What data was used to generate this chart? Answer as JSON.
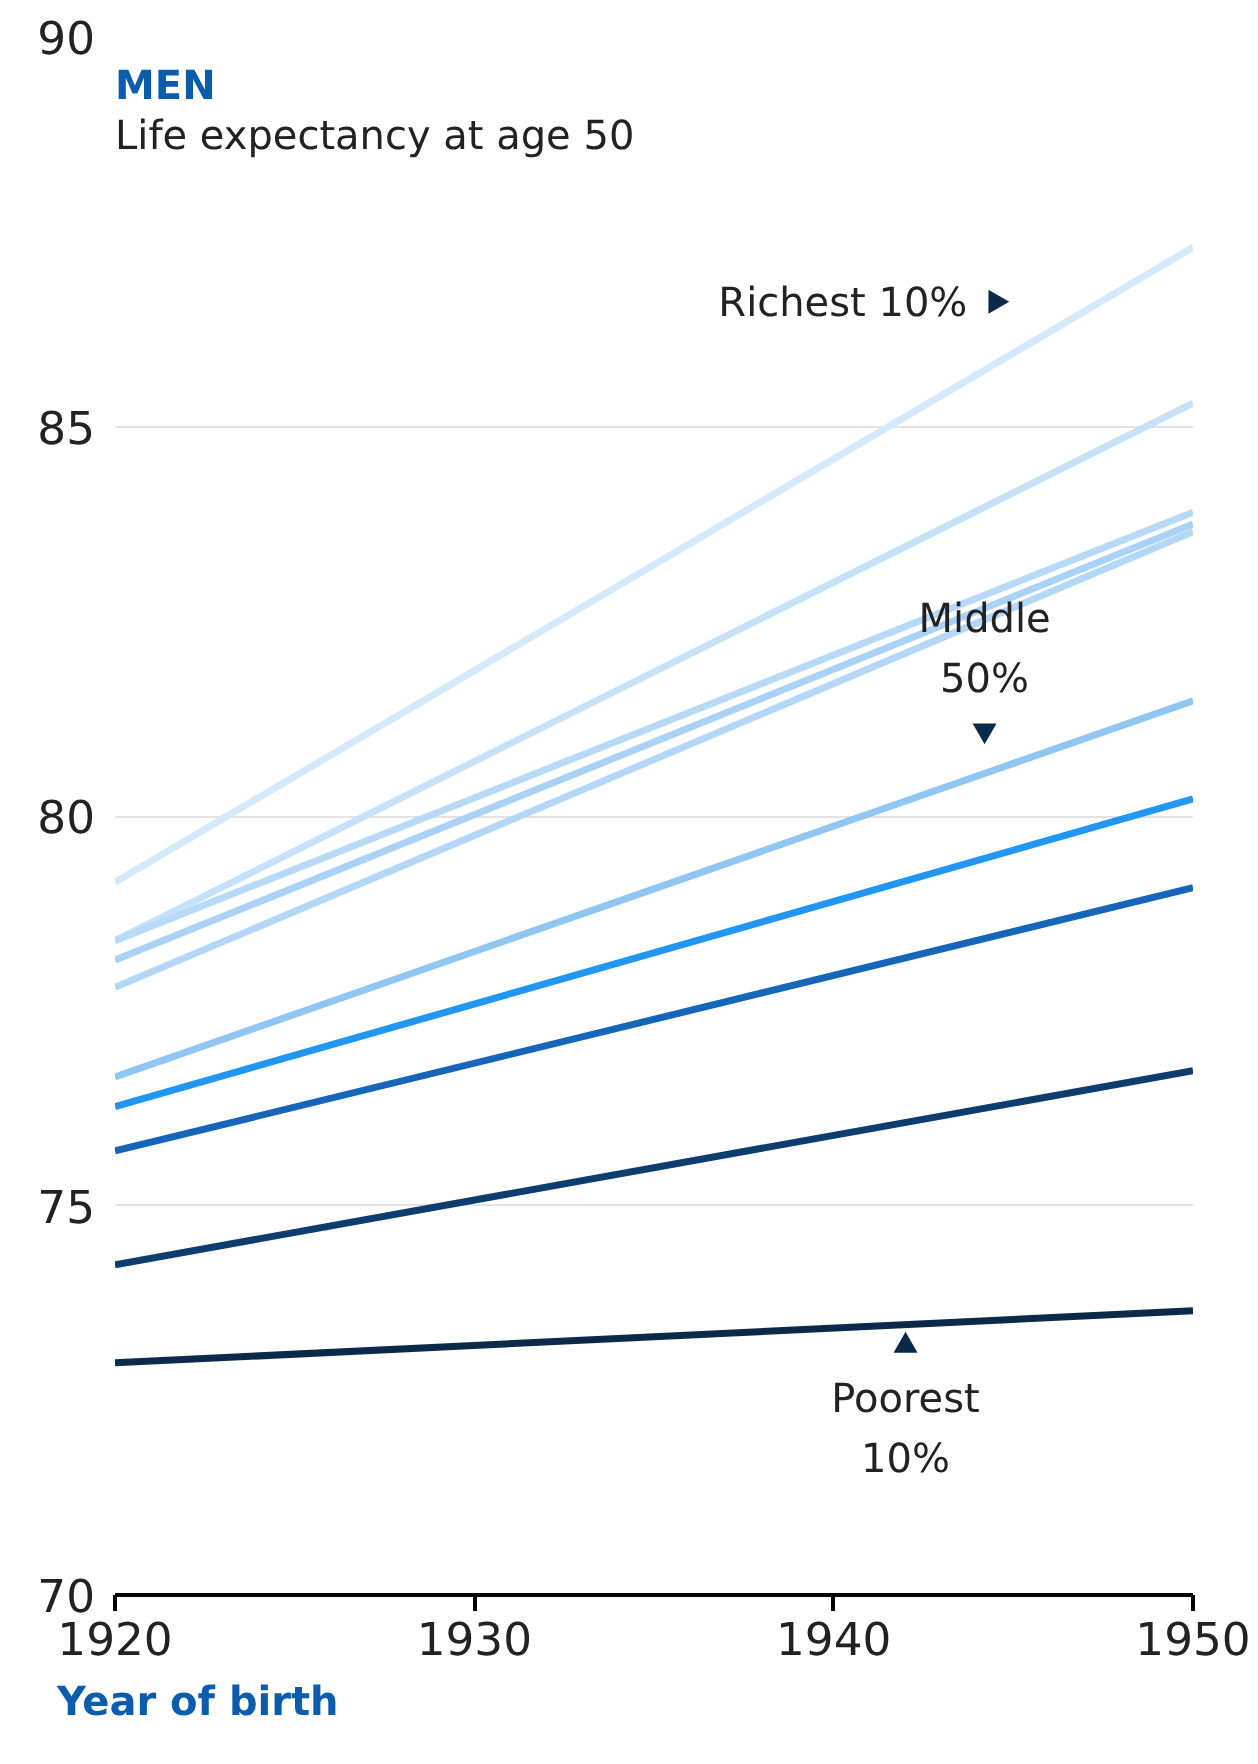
{
  "chart_data": {
    "type": "line",
    "title": "MEN",
    "subtitle": "Life expectancy at age 50",
    "xlabel": "Year of birth",
    "x": [
      1920,
      1950
    ],
    "series": [
      {
        "color": "#d4e9fb",
        "values": [
          79.15,
          87.3
        ]
      },
      {
        "color": "#c6e2fa",
        "values": [
          78.4,
          85.3
        ]
      },
      {
        "color": "#b7daf8",
        "values": [
          78.4,
          83.9
        ]
      },
      {
        "color": "#a9d2f6",
        "values": [
          78.15,
          83.75
        ]
      },
      {
        "color": "#b3d7f7",
        "values": [
          77.8,
          83.65
        ]
      },
      {
        "color": "#90c6f2",
        "values": [
          76.65,
          81.48
        ]
      },
      {
        "color": "#2196f3",
        "values": [
          76.27,
          80.22
        ]
      },
      {
        "color": "#1565b8",
        "values": [
          75.7,
          79.08
        ]
      },
      {
        "color": "#0d3d6e",
        "values": [
          74.24,
          76.73
        ]
      },
      {
        "color": "#0b2a4a",
        "values": [
          72.98,
          73.65
        ]
      }
    ],
    "annotations": [
      {
        "text": "Richest 10%",
        "x": 1944.5,
        "y": 86.6
      },
      {
        "text": "Middle 50%",
        "x": 1944.2,
        "y": 81.1
      },
      {
        "text": "Poorest 10%",
        "x": 1942,
        "y": 73.2
      }
    ],
    "xlim": [
      1920,
      1950
    ],
    "xticks": [
      1920,
      1930,
      1940,
      1950
    ],
    "ylim": [
      70,
      90
    ],
    "yticks": [
      70,
      75,
      80,
      85,
      90
    ],
    "grid": "y",
    "marker": "none",
    "line_style": "solid"
  }
}
